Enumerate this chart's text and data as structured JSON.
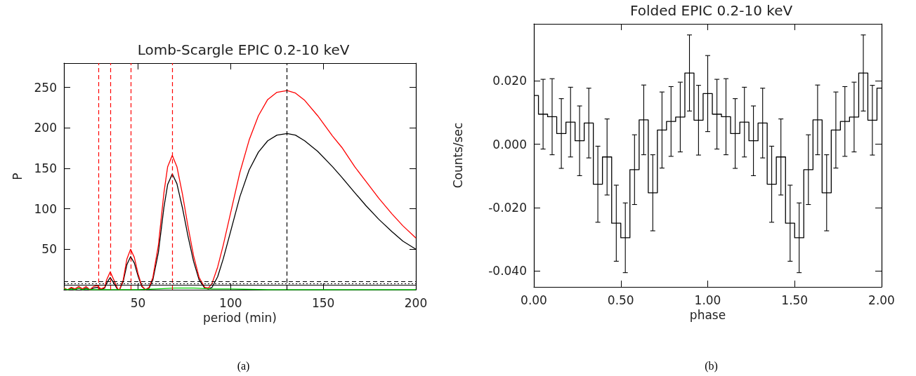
{
  "chart_data": [
    {
      "type": "line",
      "title": "Lomb-Scargle EPIC 0.2-10 keV",
      "xlabel": "period (min)",
      "ylabel": "P",
      "annotations": [
        "(a)"
      ],
      "x": [
        10,
        12,
        14,
        16,
        18,
        20,
        22,
        24,
        26,
        28,
        30,
        32,
        33,
        35,
        37,
        39,
        40,
        42,
        44,
        46,
        48,
        50,
        52,
        54,
        56,
        58,
        61,
        64,
        66,
        68.5,
        71,
        74,
        77,
        80,
        83,
        86,
        88,
        90,
        93,
        96,
        100,
        105,
        110,
        115,
        120,
        125,
        130.5,
        135,
        140,
        147,
        155,
        160,
        167,
        173,
        180,
        187,
        193,
        200
      ],
      "xlim": [
        10,
        200
      ],
      "xticks": [
        50,
        100,
        150,
        200
      ],
      "ylim": [
        0,
        280
      ],
      "yticks": [
        50,
        100,
        150,
        200,
        250
      ],
      "series": [
        {
          "color": "#000000",
          "values": [
            1,
            0,
            2,
            0,
            2,
            0,
            2,
            0,
            2,
            3,
            0,
            2,
            8,
            15,
            8,
            0,
            0,
            10,
            31,
            41,
            33,
            17,
            4,
            0,
            2,
            12,
            46,
            102,
            130,
            143,
            131,
            101,
            66,
            35,
            12,
            2,
            1,
            3,
            16,
            38,
            72,
            115,
            148,
            170,
            184,
            191,
            193,
            191,
            184,
            171,
            152,
            139,
            120,
            104,
            87,
            72,
            60,
            50
          ]
        },
        {
          "color": "#ff0000",
          "values": [
            2,
            0,
            3,
            1,
            4,
            1,
            4,
            0,
            4,
            5,
            1,
            3,
            12,
            22,
            12,
            1,
            0,
            12,
            38,
            50,
            40,
            20,
            5,
            0,
            3,
            15,
            55,
            120,
            152,
            166,
            152,
            118,
            78,
            42,
            15,
            3,
            2,
            8,
            28,
            55,
            95,
            145,
            185,
            215,
            235,
            244,
            246,
            243,
            234,
            215,
            190,
            176,
            152,
            134,
            113,
            94,
            79,
            64
          ]
        },
        {
          "color": "#00cc00",
          "x": [
            10,
            12,
            14,
            16,
            18,
            20,
            22,
            25,
            30,
            40,
            50,
            60,
            70,
            80,
            90,
            100,
            120,
            150,
            200
          ],
          "values": [
            1,
            0,
            1,
            0,
            2,
            0,
            1,
            0,
            0,
            0,
            0,
            1,
            2,
            2,
            1,
            1,
            0,
            0,
            0
          ]
        }
      ],
      "ref_lines": [
        {
          "axis": "x",
          "value": 28.5,
          "color": "#ff0000",
          "line_style": "dashed"
        },
        {
          "axis": "x",
          "value": 35,
          "color": "#ff0000",
          "line_style": "dashed"
        },
        {
          "axis": "x",
          "value": 46,
          "color": "#ff0000",
          "line_style": "dashed"
        },
        {
          "axis": "x",
          "value": 68.5,
          "color": "#ff0000",
          "line_style": "dashed"
        },
        {
          "axis": "x",
          "value": 130.5,
          "color": "#000000",
          "line_style": "dashed"
        },
        {
          "axis": "y",
          "value": 10,
          "color": "#000000",
          "line_style": "dashed"
        },
        {
          "axis": "y",
          "value": 8,
          "color": "#000000",
          "line_style": "dotted"
        },
        {
          "axis": "y",
          "value": 6,
          "color": "#000000",
          "line_style": "solid"
        }
      ]
    },
    {
      "type": "step",
      "title": "Folded EPIC 0.2-10 keV",
      "xlabel": "phase",
      "ylabel": "Counts/sec",
      "annotations": [
        "(b)"
      ],
      "xlim": [
        0,
        2
      ],
      "xticks": [
        {
          "value": 0,
          "label": "0.00"
        },
        {
          "value": 0.5,
          "label": "0.50"
        },
        {
          "value": 1,
          "label": "1.00"
        },
        {
          "value": 1.5,
          "label": "1.50"
        },
        {
          "value": 2,
          "label": "2.00"
        }
      ],
      "ylim": [
        -0.045,
        0.038
      ],
      "yticks": [
        {
          "value": -0.04,
          "label": "-0.040"
        },
        {
          "value": -0.02,
          "label": "-0.020"
        },
        {
          "value": 0,
          "label": "0.000"
        },
        {
          "value": 0.02,
          "label": "0.020"
        }
      ],
      "series": [
        {
          "color": "#000000",
          "x": [
            0,
            0.053,
            0.105,
            0.158,
            0.211,
            0.263,
            0.316,
            0.368,
            0.421,
            0.474,
            0.526,
            0.579,
            0.632,
            0.684,
            0.737,
            0.789,
            0.842,
            0.895,
            0.947,
            1,
            1.053,
            1.105,
            1.158,
            1.211,
            1.263,
            1.316,
            1.368,
            1.421,
            1.474,
            1.526,
            1.579,
            1.632,
            1.684,
            1.737,
            1.789,
            1.842,
            1.895,
            1.947,
            2
          ],
          "values": [
            0.0154,
            0.0095,
            0.0087,
            0.0034,
            0.007,
            0.0011,
            0.0067,
            -0.0126,
            -0.004,
            -0.0249,
            -0.0295,
            -0.008,
            0.0077,
            -0.0153,
            0.0045,
            0.0072,
            0.0086,
            0.0225,
            0.0076,
            0.016,
            0.0095,
            0.0087,
            0.0034,
            0.007,
            0.0011,
            0.0067,
            -0.0126,
            -0.004,
            -0.0249,
            -0.0295,
            -0.008,
            0.0077,
            -0.0153,
            0.0045,
            0.0072,
            0.0086,
            0.0225,
            0.0076,
            0.0177
          ],
          "errors": [
            null,
            0.011,
            0.012,
            0.011,
            0.011,
            0.011,
            0.011,
            0.012,
            0.012,
            0.012,
            0.011,
            0.011,
            0.011,
            0.012,
            0.012,
            0.011,
            0.011,
            0.012,
            0.011,
            0.012,
            0.011,
            0.012,
            0.011,
            0.011,
            0.011,
            0.011,
            0.012,
            0.012,
            0.012,
            0.011,
            0.011,
            0.011,
            0.012,
            0.012,
            0.011,
            0.011,
            0.012,
            0.011,
            null
          ]
        }
      ]
    }
  ]
}
